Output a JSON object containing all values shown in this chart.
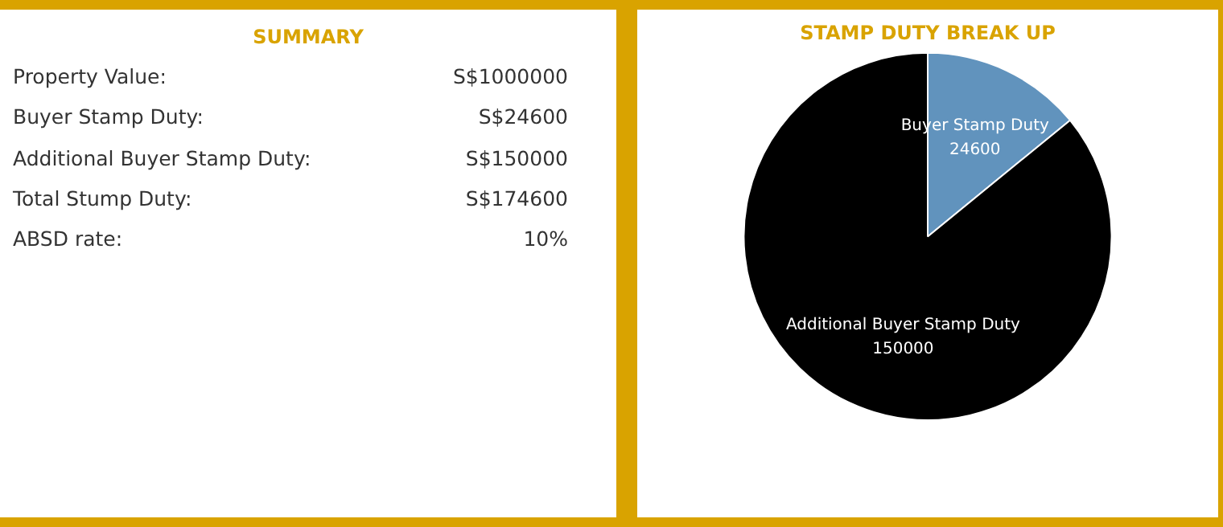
{
  "chart_data": [
    {
      "type": "other",
      "title": "SUMMARY",
      "annotations": [
        "Property Value:",
        "S$1000000",
        "Buyer Stamp Duty:",
        "S$24600",
        "Additional Buyer Stamp Duty:",
        "S$150000",
        "Total Stump Duty:",
        "S$174600",
        "ABSD rate:",
        "10%"
      ]
    },
    {
      "type": "pie",
      "title": "STAMP DUTY BREAK UP",
      "categories": [
        "Buyer Stamp Duty",
        "Additional Buyer Stamp Duty"
      ],
      "values": [
        24600,
        150000
      ],
      "colors": [
        "#6193bd",
        "#000000"
      ],
      "data_labels": true
    }
  ]
}
